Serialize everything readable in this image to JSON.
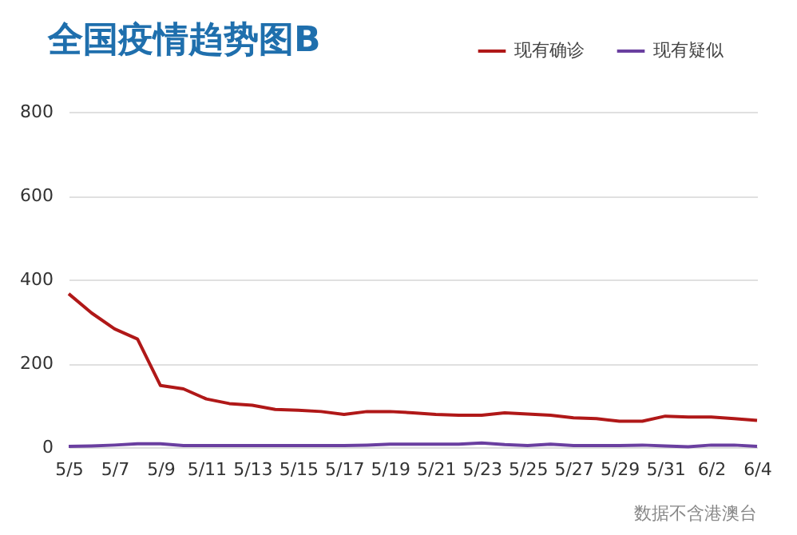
{
  "chart_data": {
    "type": "line",
    "title": "全国疫情趋势图B",
    "categories": [
      "5/5",
      null,
      "5/7",
      null,
      "5/9",
      null,
      "5/11",
      null,
      "5/13",
      null,
      "5/15",
      null,
      "5/17",
      null,
      "5/19",
      null,
      "5/21",
      null,
      "5/23",
      null,
      "5/25",
      null,
      "5/27",
      null,
      "5/29",
      null,
      "5/31",
      null,
      "6/2",
      null,
      "6/4"
    ],
    "series": [
      {
        "name": "现有确诊",
        "color": "#b01818",
        "values": [
          366,
          320,
          282,
          258,
          147,
          139,
          115,
          104,
          100,
          90,
          88,
          85,
          78,
          85,
          85,
          82,
          78,
          76,
          76,
          82,
          79,
          76,
          70,
          68,
          62,
          62,
          74,
          72,
          72,
          68,
          64
        ]
      },
      {
        "name": "现有疑似",
        "color": "#6a3fa0",
        "values": [
          2,
          3,
          5,
          8,
          8,
          4,
          4,
          4,
          4,
          4,
          4,
          4,
          4,
          5,
          7,
          7,
          7,
          7,
          10,
          6,
          4,
          7,
          4,
          4,
          4,
          5,
          3,
          1,
          5,
          5,
          2
        ]
      }
    ],
    "ylim": [
      0,
      800
    ],
    "yticks": [
      0,
      200,
      400,
      600,
      800
    ],
    "grid": "y",
    "legend": "top right",
    "annotations": [
      "数据不含港澳台"
    ]
  }
}
